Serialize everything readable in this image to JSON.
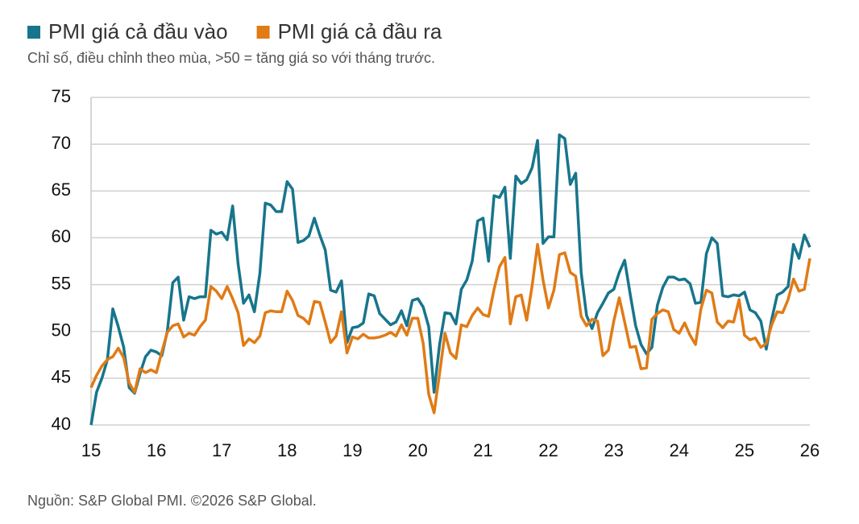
{
  "chart_data": {
    "type": "line",
    "subtitle": "Chỉ số, điều chỉnh theo mùa, >50 = tăng giá so với tháng trước.",
    "source": "Nguồn: S&P Global PMI. ©2026 S&P Global.",
    "categories": [
      "15",
      null,
      null,
      null,
      null,
      null,
      null,
      null,
      null,
      null,
      null,
      null,
      "16",
      null,
      null,
      null,
      null,
      null,
      null,
      null,
      null,
      null,
      null,
      null,
      "17",
      null,
      null,
      null,
      null,
      null,
      null,
      null,
      null,
      null,
      null,
      null,
      "18",
      null,
      null,
      null,
      null,
      null,
      null,
      null,
      null,
      null,
      null,
      null,
      "19",
      null,
      null,
      null,
      null,
      null,
      null,
      null,
      null,
      null,
      null,
      null,
      "20",
      null,
      null,
      null,
      null,
      null,
      null,
      null,
      null,
      null,
      null,
      null,
      "21",
      null,
      null,
      null,
      null,
      null,
      null,
      null,
      null,
      null,
      null,
      null,
      "22",
      null,
      null,
      null,
      null,
      null,
      null,
      null,
      null,
      null,
      null,
      null,
      "23",
      null,
      null,
      null,
      null,
      null,
      null,
      null,
      null,
      null,
      null,
      null,
      "24",
      null,
      null,
      null,
      null,
      null,
      null,
      null,
      null,
      null,
      null,
      null,
      "25",
      null,
      null,
      null,
      null,
      null,
      null,
      null,
      null,
      null,
      null,
      null,
      "26"
    ],
    "series": [
      {
        "name": "PMI giá cả đầu vào",
        "color": "#17758c",
        "values": [
          40,
          43.5,
          45,
          47,
          52.4,
          50.5,
          48.3,
          44,
          43.4,
          45.5,
          47.3,
          48,
          47.8,
          47.4,
          50,
          55.2,
          55.8,
          51.2,
          53.7,
          53.5,
          53.7,
          53.7,
          60.8,
          60.4,
          60.6,
          59.8,
          63.4,
          57.2,
          53,
          53.9,
          52.1,
          56.2,
          63.7,
          63.5,
          62.8,
          62.8,
          66,
          65.2,
          59.5,
          59.7,
          60.2,
          62.1,
          60.3,
          58.7,
          54.4,
          54.2,
          55.4,
          48.8,
          50.4,
          50.5,
          50.9,
          54,
          53.8,
          51.9,
          51.3,
          50.7,
          51,
          52.2,
          50.6,
          53.3,
          53.5,
          52.6,
          50.5,
          43.5,
          48.6,
          52,
          51.9,
          50.8,
          54.5,
          55.5,
          57.5,
          61.8,
          62.1,
          57.5,
          64.5,
          64.3,
          65.4,
          57.8,
          66.6,
          65.8,
          66.2,
          67.5,
          70.4,
          59.4,
          60.1,
          60.1,
          71,
          70.6,
          65.7,
          66.9,
          56.3,
          51.7,
          50.3,
          52,
          53,
          54.1,
          54.5,
          56.3,
          57.6,
          54,
          50.6,
          48.6,
          47.6,
          48.3,
          52.8,
          54.7,
          55.8,
          55.8,
          55.5,
          55.6,
          55.1,
          53,
          53.1,
          58.3,
          60,
          59.4,
          53.8,
          53.7,
          53.9,
          53.8,
          54.2,
          52.3,
          52,
          51.1,
          48.1,
          51.3,
          53.9,
          54.2,
          54.8,
          59.3,
          57.8,
          60.3,
          59
        ]
      },
      {
        "name": "PMI giá cả đầu ra",
        "color": "#e07b16",
        "values": [
          44,
          45.3,
          46.3,
          47,
          47.3,
          48.2,
          47.2,
          44.5,
          43.5,
          46,
          45.6,
          45.9,
          45.6,
          47.8,
          49.9,
          50.6,
          50.8,
          49.4,
          49.8,
          49.6,
          50.5,
          51.2,
          54.8,
          54.3,
          53.5,
          54.8,
          53.5,
          52,
          48.5,
          49.2,
          48.8,
          49.5,
          52,
          52.2,
          52.1,
          52.1,
          54.3,
          53.3,
          51.7,
          51.4,
          50.8,
          53.2,
          53.1,
          51,
          48.8,
          49.5,
          52.1,
          47.7,
          49.4,
          49.2,
          49.7,
          49.3,
          49.3,
          49.4,
          49.6,
          49.9,
          49.5,
          50.7,
          49.6,
          51.4,
          51.4,
          48.7,
          43.3,
          41.3,
          45.5,
          49.8,
          47.7,
          47.1,
          50.7,
          50.5,
          51.7,
          52.5,
          51.8,
          51.6,
          54.5,
          56.9,
          57.9,
          50.8,
          53.7,
          53.9,
          51.2,
          54.9,
          59.3,
          55.5,
          52.5,
          54.4,
          58.2,
          58.4,
          56.3,
          55.9,
          51.6,
          50.6,
          51.3,
          51.1,
          47.4,
          48,
          51.1,
          53.6,
          51,
          48.3,
          48.4,
          46,
          46.1,
          51.3,
          51.9,
          52.3,
          52.1,
          50.2,
          49.8,
          50.9,
          49.6,
          48.6,
          52.4,
          54.4,
          54.1,
          51,
          50.4,
          51.1,
          51,
          53.4,
          49.6,
          49.1,
          49.3,
          48.3,
          48.7,
          50.7,
          52.1,
          52,
          53.4,
          55.6,
          54.3,
          54.5,
          57.8
        ]
      }
    ],
    "ylim": [
      40,
      75
    ],
    "yticks": [
      40,
      45,
      50,
      55,
      60,
      65,
      70,
      75
    ],
    "grid": true
  }
}
